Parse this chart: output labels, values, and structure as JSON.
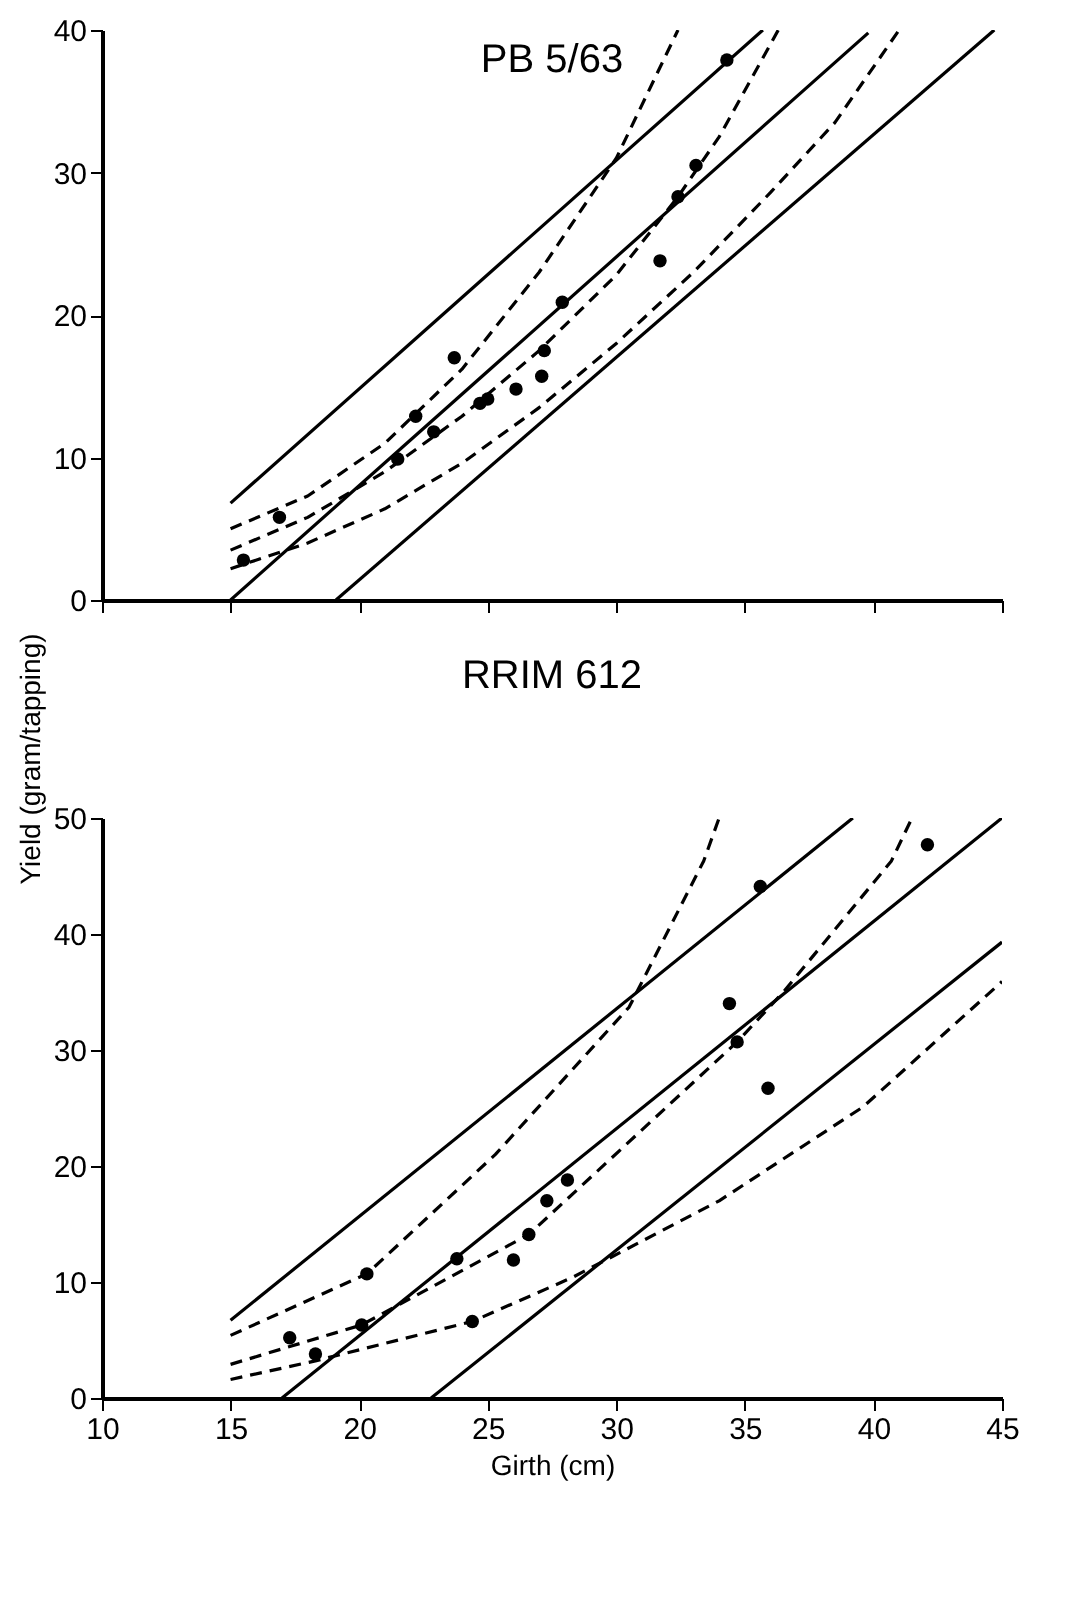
{
  "chart_data": [
    {
      "type": "scatter",
      "title": "PB 5/63",
      "xlim": [
        10,
        45
      ],
      "xticks": [
        10,
        15,
        20,
        25,
        30,
        35,
        40,
        45
      ],
      "ylim": [
        0,
        40
      ],
      "yticks": [
        0,
        10,
        20,
        30,
        40
      ],
      "tick_labels": "y",
      "grid": false,
      "series": [
        {
          "type": "scatter",
          "marker": "circle",
          "color": "#000000",
          "x": [
            15.5,
            16.9,
            21.5,
            22.2,
            22.9,
            23.7,
            24.7,
            25.0,
            26.1,
            27.1,
            27.2,
            27.9,
            31.7,
            32.4,
            33.1,
            34.3
          ],
          "values": [
            2.8,
            5.8,
            9.9,
            12.9,
            11.8,
            17.0,
            13.8,
            14.1,
            14.8,
            15.7,
            17.5,
            20.9,
            23.8,
            28.3,
            30.5,
            37.9
          ]
        },
        {
          "type": "line",
          "line_style": "solid",
          "color": "#000000",
          "x": [
            15,
            39.8
          ],
          "values": [
            0,
            39.8
          ]
        },
        {
          "type": "line",
          "line_style": "solid",
          "color": "#000000",
          "x": [
            15,
            35.7
          ],
          "values": [
            6.8,
            40
          ]
        },
        {
          "type": "line",
          "line_style": "solid",
          "color": "#000000",
          "x": [
            19.1,
            44.7
          ],
          "values": [
            0,
            40
          ]
        },
        {
          "type": "line",
          "line_style": "dashed",
          "color": "#000000",
          "x": [
            15,
            18,
            21,
            24,
            27,
            30,
            32.4,
            34,
            36.3
          ],
          "values": [
            3.5,
            5.8,
            9.0,
            12.9,
            17.5,
            22.8,
            28.3,
            32.5,
            40
          ]
        },
        {
          "type": "line",
          "line_style": "dashed",
          "color": "#000000",
          "x": [
            15,
            18,
            21,
            24,
            27,
            30,
            32.4
          ],
          "values": [
            5.0,
            7.3,
            11.0,
            16.2,
            23.0,
            31.0,
            40
          ]
        },
        {
          "type": "line",
          "line_style": "dashed",
          "color": "#000000",
          "x": [
            15,
            18,
            21,
            24,
            27,
            30,
            33,
            36,
            38.5,
            41.0
          ],
          "values": [
            2.2,
            4.0,
            6.4,
            9.6,
            13.5,
            18.0,
            23.0,
            28.6,
            33.5,
            40
          ]
        }
      ]
    },
    {
      "type": "scatter",
      "title": "RRIM 612",
      "xlabel": "Girth (cm)",
      "ylabel": "Yield (gram/tapping)",
      "xlim": [
        10,
        45
      ],
      "xticks": [
        10,
        15,
        20,
        25,
        30,
        35,
        40,
        45
      ],
      "ylim": [
        0,
        50
      ],
      "yticks": [
        0,
        10,
        20,
        30,
        40,
        50
      ],
      "grid": false,
      "series": [
        {
          "type": "scatter",
          "marker": "circle",
          "color": "#000000",
          "x": [
            17.3,
            18.3,
            20.1,
            20.3,
            23.8,
            24.4,
            26.0,
            26.6,
            27.3,
            28.1,
            34.4,
            34.7,
            35.6,
            35.9,
            42.1
          ],
          "values": [
            5.2,
            3.8,
            6.3,
            10.7,
            12.0,
            6.6,
            11.9,
            14.1,
            17.0,
            18.8,
            34.0,
            30.7,
            44.1,
            26.7,
            47.7
          ]
        },
        {
          "type": "line",
          "line_style": "solid",
          "color": "#000000",
          "x": [
            17.0,
            45
          ],
          "values": [
            0,
            50
          ]
        },
        {
          "type": "line",
          "line_style": "solid",
          "color": "#000000",
          "x": [
            15,
            39.2
          ],
          "values": [
            6.7,
            50
          ]
        },
        {
          "type": "line",
          "line_style": "solid",
          "color": "#000000",
          "x": [
            22.8,
            45
          ],
          "values": [
            0,
            39.3
          ]
        },
        {
          "type": "line",
          "line_style": "dashed",
          "color": "#000000",
          "x": [
            15,
            20.1,
            26.6,
            34.7,
            36.5,
            40.7,
            41.5
          ],
          "values": [
            2.9,
            6.3,
            14.1,
            30.7,
            35.0,
            46.3,
            50
          ]
        },
        {
          "type": "line",
          "line_style": "dashed",
          "color": "#000000",
          "x": [
            15,
            20.3,
            25.3,
            30.5,
            33.4,
            34.0
          ],
          "values": [
            5.4,
            10.7,
            21.0,
            33.7,
            46.3,
            50
          ]
        },
        {
          "type": "line",
          "line_style": "dashed",
          "color": "#000000",
          "x": [
            15,
            18.3,
            24.4,
            28.3,
            34.0,
            39.6,
            45
          ],
          "values": [
            1.6,
            3.2,
            6.6,
            10.4,
            17.0,
            25.1,
            35.9
          ]
        }
      ]
    }
  ]
}
